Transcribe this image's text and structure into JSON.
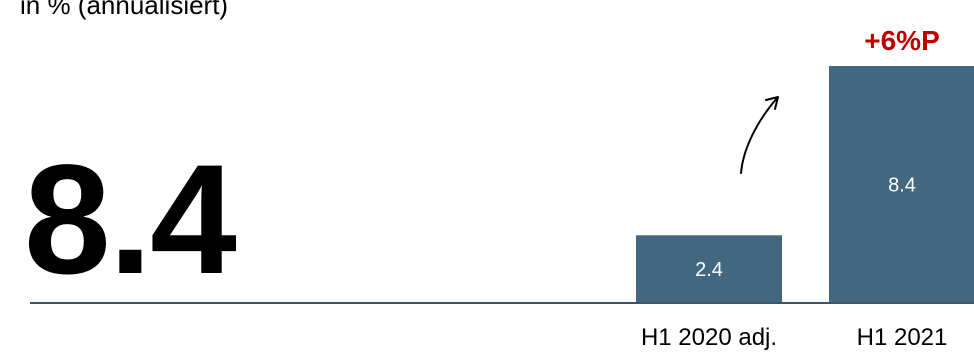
{
  "header": {
    "subtitle": "in % (annualisiert)",
    "kpi_value": "8.4"
  },
  "colors": {
    "bar": "#42677f",
    "baseline": "#3b5566",
    "delta": "#c00000",
    "arrow": "#000000"
  },
  "chart_data": {
    "type": "bar",
    "categories": [
      "H1 2020 adj.",
      "H1 2021"
    ],
    "values": [
      2.4,
      8.4
    ],
    "value_labels": [
      "2.4",
      "8.4"
    ],
    "annotation": "+6%P",
    "title": "",
    "xlabel": "",
    "ylabel": "in % (annualisiert)",
    "ylim": [
      0,
      8.4
    ],
    "grid": false,
    "legend": "none"
  }
}
